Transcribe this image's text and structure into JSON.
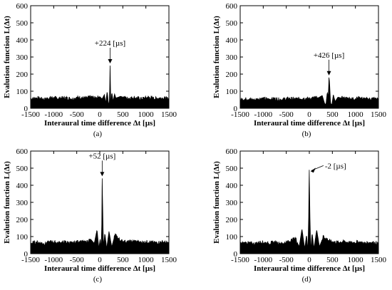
{
  "chart_data": [
    {
      "type": "line",
      "caption": "(a)",
      "ylabel": "Evalution function L(Δt)",
      "xlabel": "Interaural time difference Δt [µs]",
      "xlim": [
        -1500,
        1500
      ],
      "ylim": [
        0,
        600
      ],
      "xticks": [
        -1500,
        -1000,
        -500,
        0,
        500,
        1000,
        1500
      ],
      "yticks": [
        0,
        100,
        200,
        300,
        400,
        500,
        600
      ],
      "annotation": "+224 [µs]",
      "peak": {
        "x": 224,
        "y": 250
      },
      "series": [
        {
          "x": [
            -1500,
            -1350,
            -1200,
            -1050,
            -900,
            -750,
            -600,
            -450,
            -300,
            -200,
            -100,
            0,
            50,
            100,
            130,
            160,
            190,
            205,
            215,
            224,
            232,
            245,
            260,
            290,
            320,
            350,
            450,
            600,
            750,
            900,
            1050,
            1200,
            1350,
            1500
          ],
          "y": [
            55,
            60,
            52,
            63,
            57,
            61,
            55,
            64,
            58,
            66,
            60,
            68,
            55,
            80,
            30,
            100,
            25,
            20,
            120,
            250,
            110,
            20,
            95,
            40,
            85,
            60,
            70,
            58,
            62,
            55,
            64,
            57,
            60,
            55
          ]
        }
      ]
    },
    {
      "type": "line",
      "caption": "(b)",
      "ylabel": "Evalution function L(Δt)",
      "xlabel": "Interaural time difference Δt [µs]",
      "xlim": [
        -1500,
        1500
      ],
      "ylim": [
        0,
        600
      ],
      "xticks": [
        -1500,
        -1000,
        -500,
        0,
        500,
        1000,
        1500
      ],
      "yticks": [
        0,
        100,
        200,
        300,
        400,
        500,
        600
      ],
      "annotation": "+426 [µs]",
      "peak": {
        "x": 426,
        "y": 180
      },
      "series": [
        {
          "x": [
            -1500,
            -1350,
            -1200,
            -1050,
            -900,
            -750,
            -600,
            -450,
            -300,
            -150,
            0,
            100,
            200,
            280,
            330,
            360,
            390,
            410,
            426,
            440,
            460,
            490,
            520,
            560,
            620,
            700,
            800,
            950,
            1100,
            1250,
            1400,
            1500
          ],
          "y": [
            50,
            55,
            48,
            58,
            52,
            56,
            50,
            57,
            53,
            59,
            55,
            60,
            62,
            75,
            30,
            20,
            95,
            60,
            180,
            150,
            30,
            20,
            80,
            40,
            65,
            60,
            58,
            55,
            60,
            52,
            57,
            50
          ]
        }
      ]
    },
    {
      "type": "line",
      "caption": "(c)",
      "ylabel": "Evalution function L(Δt)",
      "xlabel": "Interaural time difference Δt [µs]",
      "xlim": [
        -1500,
        1500
      ],
      "ylim": [
        0,
        600
      ],
      "xticks": [
        -1500,
        -1000,
        -500,
        0,
        500,
        1000,
        1500
      ],
      "yticks": [
        0,
        100,
        200,
        300,
        400,
        500,
        600
      ],
      "annotation": "+52 [µs]",
      "peak": {
        "x": 52,
        "y": 440
      },
      "series": [
        {
          "x": [
            -1500,
            -1350,
            -1200,
            -1050,
            -900,
            -750,
            -600,
            -450,
            -300,
            -200,
            -120,
            -60,
            -20,
            10,
            30,
            45,
            52,
            60,
            80,
            110,
            150,
            200,
            260,
            330,
            450,
            600,
            750,
            900,
            1050,
            1200,
            1350,
            1500
          ],
          "y": [
            60,
            66,
            58,
            70,
            62,
            68,
            60,
            72,
            65,
            85,
            60,
            140,
            30,
            90,
            20,
            200,
            440,
            300,
            40,
            120,
            30,
            130,
            40,
            110,
            75,
            68,
            72,
            64,
            70,
            62,
            68,
            60
          ]
        }
      ]
    },
    {
      "type": "line",
      "caption": "(d)",
      "ylabel": "Evalution function L(Δt)",
      "xlabel": "Interaural time difference Δt [µs]",
      "xlim": [
        -1500,
        1500
      ],
      "ylim": [
        0,
        600
      ],
      "xticks": [
        -1500,
        -1000,
        -500,
        0,
        500,
        1000,
        1500
      ],
      "yticks": [
        0,
        100,
        200,
        300,
        400,
        500,
        600
      ],
      "annotation": "-2 [µs]",
      "peak": {
        "x": -2,
        "y": 490
      },
      "series": [
        {
          "x": [
            -1500,
            -1350,
            -1200,
            -1050,
            -900,
            -750,
            -600,
            -450,
            -300,
            -220,
            -160,
            -100,
            -60,
            -30,
            -15,
            -2,
            10,
            30,
            60,
            100,
            160,
            220,
            300,
            450,
            600,
            750,
            900,
            1050,
            1200,
            1350,
            1500
          ],
          "y": [
            58,
            64,
            56,
            68,
            60,
            66,
            58,
            70,
            90,
            40,
            145,
            30,
            110,
            20,
            200,
            490,
            260,
            20,
            120,
            30,
            140,
            40,
            100,
            72,
            65,
            70,
            62,
            68,
            60,
            66,
            58
          ]
        }
      ]
    }
  ]
}
